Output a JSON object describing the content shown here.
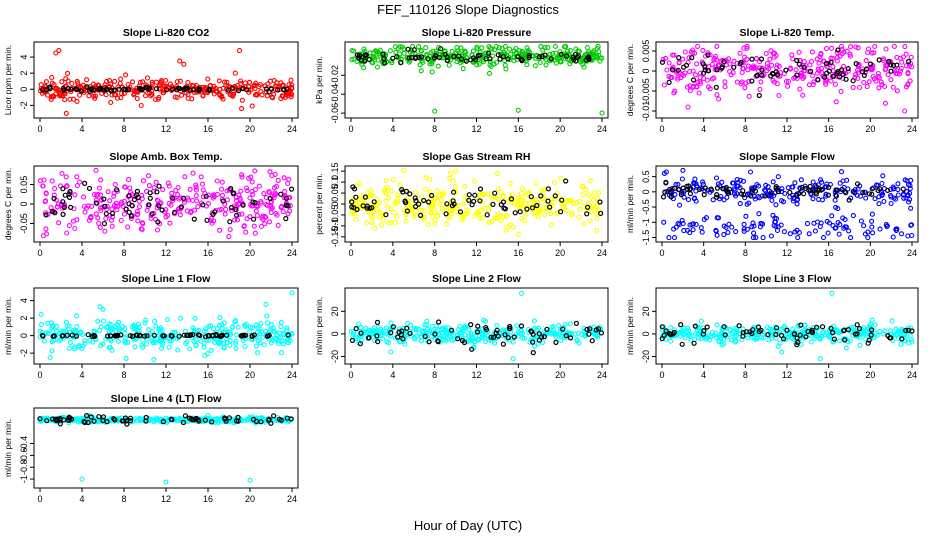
{
  "title": "FEF_110126  Slope Diagnostics",
  "xlabel": "Hour of Day (UTC)",
  "chart_data": [
    {
      "type": "scatter",
      "title": "Slope Li-820 CO2",
      "ylabel": "Licor ppm per min.",
      "color": "#ff0000",
      "xlim": [
        0,
        24
      ],
      "xticks": [
        0,
        4,
        8,
        12,
        16,
        20,
        24
      ],
      "ylim": [
        -3.2,
        5.5
      ],
      "yticks": [
        -2,
        0,
        2,
        4
      ],
      "spread": 0.6,
      "black_spread": 0.12,
      "center": 0,
      "outliers": [
        [
          1.5,
          4.5
        ],
        [
          1.8,
          4.8
        ],
        [
          13.3,
          3.5
        ],
        [
          13.7,
          3.1
        ],
        [
          19,
          4.8
        ],
        [
          18.6,
          2.0
        ],
        [
          2.5,
          -3.0
        ],
        [
          19.2,
          -2.4
        ]
      ]
    },
    {
      "type": "scatter",
      "title": "Slope Li-820 Pressure",
      "ylabel": "kPa per min.",
      "color": "#00cc00",
      "xlim": [
        0,
        24
      ],
      "xticks": [
        0,
        4,
        8,
        12,
        16,
        20,
        24
      ],
      "ylim": [
        -0.062,
        0.012
      ],
      "yticks": [
        -0.06,
        -0.04,
        -0.02
      ],
      "spread": 0.006,
      "black_spread": 0.003,
      "center": 0.0,
      "outliers": [
        [
          8,
          -0.058
        ],
        [
          16,
          -0.057
        ],
        [
          24,
          -0.06
        ],
        [
          1.2,
          -0.012
        ],
        [
          12.5,
          0.009
        ]
      ]
    },
    {
      "type": "scatter",
      "title": "Slope Li-820 Temp.",
      "ylabel": "degrees C per min.",
      "color": "#ff00ff",
      "xlim": [
        0,
        24
      ],
      "xticks": [
        0,
        4,
        8,
        12,
        16,
        20,
        24
      ],
      "ylim": [
        -0.011,
        0.0065
      ],
      "yticks": [
        -0.01,
        -0.005,
        0.0,
        0.005
      ],
      "spread": 0.003,
      "black_spread": 0.002,
      "center": 0.0005,
      "outliers": [
        [
          18.6,
          0.006
        ],
        [
          23.3,
          -0.01
        ],
        [
          2.5,
          -0.009
        ],
        [
          21.5,
          0.0055
        ]
      ]
    },
    {
      "type": "scatter",
      "title": "Slope Amb. Box Temp.",
      "ylabel": "degrees C per min.",
      "color": "#ff00ff",
      "xlim": [
        0,
        24
      ],
      "xticks": [
        0,
        4,
        8,
        12,
        16,
        20,
        24
      ],
      "ylim": [
        -0.09,
        0.09
      ],
      "yticks": [
        -0.05,
        0.0,
        0.05
      ],
      "spread": 0.035,
      "black_spread": 0.025,
      "center": 0,
      "outliers": [
        [
          19.2,
          0.075
        ],
        [
          3.5,
          0.07
        ],
        [
          22.4,
          0.076
        ],
        [
          20.5,
          -0.075
        ]
      ]
    },
    {
      "type": "scatter",
      "title": "Slope Gas Stream RH",
      "ylabel": "percent per min.",
      "color": "#ffff00",
      "xlim": [
        0,
        24
      ],
      "xticks": [
        0,
        4,
        8,
        12,
        16,
        20,
        24
      ],
      "ylim": [
        -0.16,
        0.16
      ],
      "yticks": [
        -0.15,
        -0.1,
        -0.05,
        0.0,
        0.05,
        0.1,
        0.15
      ],
      "spread": 0.05,
      "black_spread": 0.04,
      "center": 0,
      "outliers": [
        [
          10,
          0.15
        ],
        [
          14,
          0.14
        ],
        [
          16,
          -0.14
        ],
        [
          23.5,
          -0.12
        ]
      ]
    },
    {
      "type": "scatter",
      "title": "Slope Sample Flow",
      "ylabel": "ml/min per min.",
      "color": "#0000ff",
      "xlim": [
        0,
        24
      ],
      "xticks": [
        0,
        4,
        8,
        12,
        16,
        20,
        24
      ],
      "ylim": [
        -1.55,
        0.75
      ],
      "yticks": [
        -1.5,
        -1.0,
        -0.5,
        0.0,
        0.5
      ],
      "spread": 0.22,
      "black_spread": 0.12,
      "center": 0.05,
      "lower_band": -1.15,
      "outliers": [
        [
          23.6,
          -1.45
        ],
        [
          10.5,
          -1.45
        ],
        [
          8.5,
          0.65
        ]
      ]
    },
    {
      "type": "scatter",
      "title": "Slope Line 1 Flow",
      "ylabel": "ml/min per min.",
      "color": "#00ffff",
      "xlim": [
        0,
        24
      ],
      "xticks": [
        0,
        4,
        8,
        12,
        16,
        20,
        24
      ],
      "ylim": [
        -2.9,
        5.1
      ],
      "yticks": [
        -2,
        0,
        2,
        4
      ],
      "spread": 0.9,
      "black_spread": 0.05,
      "center": 0,
      "outliers": [
        [
          24,
          4.9
        ],
        [
          8.2,
          -2.6
        ],
        [
          6,
          3.0
        ]
      ]
    },
    {
      "type": "scatter",
      "title": "Slope Line 2 Flow",
      "ylabel": "ml/min per min.",
      "color": "#00ffff",
      "xlim": [
        0,
        24
      ],
      "xticks": [
        0,
        4,
        8,
        12,
        16,
        20,
        24
      ],
      "ylim": [
        -24,
        38
      ],
      "yticks": [
        -20,
        0,
        20
      ],
      "spread": 4,
      "black_spread": 5,
      "center": 0,
      "outliers": [
        [
          16.3,
          36
        ],
        [
          15.5,
          -22
        ],
        [
          3.8,
          -16
        ]
      ]
    },
    {
      "type": "scatter",
      "title": "Slope Line 3 Flow",
      "ylabel": "ml/min per min.",
      "color": "#00ffff",
      "xlim": [
        0,
        24
      ],
      "xticks": [
        0,
        4,
        8,
        12,
        16,
        20,
        24
      ],
      "ylim": [
        -24,
        38
      ],
      "yticks": [
        -20,
        0,
        20
      ],
      "spread": 4,
      "black_spread": 5,
      "center": 0,
      "outliers": [
        [
          16.3,
          36
        ],
        [
          15.2,
          -22
        ],
        [
          11.5,
          -16
        ]
      ]
    },
    {
      "type": "scatter",
      "title": "Slope Line 4 (LT) Flow",
      "ylabel": "ml/min per min.",
      "color": "#00ffff",
      "xlim": [
        0,
        24
      ],
      "xticks": [
        0,
        4,
        8,
        12,
        16,
        20,
        24
      ],
      "ylim": [
        -1.1,
        0.15
      ],
      "yticks": [
        -1.0,
        -0.8,
        -0.6,
        -0.4
      ],
      "spread": 0.02,
      "black_spread": 0.03,
      "center": 0,
      "outliers": [
        [
          4,
          -1.0
        ],
        [
          12,
          -1.05
        ],
        [
          20,
          -1.02
        ],
        [
          16,
          0.07
        ]
      ]
    }
  ]
}
